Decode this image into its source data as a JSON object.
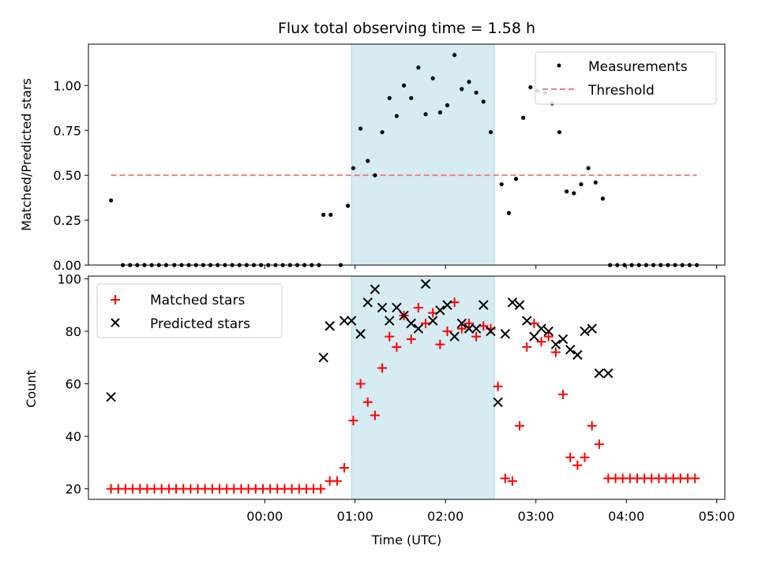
{
  "chart_data": [
    {
      "type": "scatter",
      "title": "Flux total observing time = 1.58 h",
      "xlabel": "",
      "ylabel": "Matched/Predicted stars",
      "x_unit": "hours UTC",
      "xlim": [
        -1.95,
        5.09
      ],
      "ylim": [
        0.0,
        1.23
      ],
      "yticks": [
        "0.00",
        "0.25",
        "0.50",
        "0.75",
        "1.00"
      ],
      "observing_window": [
        0.96,
        2.54
      ],
      "window_color": "#add8e6",
      "legend": {
        "position": "top-right",
        "entries": [
          "Measurements",
          "Threshold"
        ]
      },
      "series": [
        {
          "name": "Measurements",
          "marker": "dot",
          "color": "#000000",
          "x": [
            -1.7,
            -1.57,
            -1.49,
            -1.41,
            -1.33,
            -1.25,
            -1.17,
            -1.09,
            -1.0,
            -0.92,
            -0.84,
            -0.76,
            -0.68,
            -0.6,
            -0.52,
            -0.44,
            -0.36,
            -0.28,
            -0.2,
            -0.12,
            -0.04,
            0.04,
            0.12,
            0.2,
            0.28,
            0.36,
            0.44,
            0.52,
            0.6,
            0.65,
            0.73,
            0.84,
            0.92,
            0.98,
            1.06,
            1.14,
            1.22,
            1.3,
            1.38,
            1.46,
            1.54,
            1.62,
            1.7,
            1.78,
            1.86,
            1.94,
            2.02,
            2.1,
            2.18,
            2.26,
            2.34,
            2.42,
            2.5,
            2.62,
            2.7,
            2.78,
            2.86,
            2.94,
            3.02,
            3.1,
            3.18,
            3.26,
            3.34,
            3.42,
            3.5,
            3.58,
            3.66,
            3.74,
            3.82,
            3.9,
            3.98,
            4.06,
            4.14,
            4.22,
            4.3,
            4.38,
            4.46,
            4.54,
            4.62,
            4.7,
            4.78
          ],
          "y": [
            0.36,
            0.0,
            0.0,
            0.0,
            0.0,
            0.0,
            0.0,
            0.0,
            0.0,
            0.0,
            0.0,
            0.0,
            0.0,
            0.0,
            0.0,
            0.0,
            0.0,
            0.0,
            0.0,
            0.0,
            0.0,
            0.0,
            0.0,
            0.0,
            0.0,
            0.0,
            0.0,
            0.0,
            0.0,
            0.28,
            0.28,
            0.0,
            0.33,
            0.54,
            0.76,
            0.58,
            0.5,
            0.74,
            0.93,
            0.83,
            1.0,
            0.93,
            1.1,
            0.84,
            1.04,
            0.85,
            0.89,
            1.17,
            0.98,
            1.02,
            0.96,
            0.91,
            0.74,
            0.45,
            0.29,
            0.48,
            0.82,
            0.99,
            0.97,
            0.96,
            0.9,
            0.74,
            0.41,
            0.4,
            0.45,
            0.54,
            0.46,
            0.37,
            0.0,
            0.0,
            0.0,
            0.0,
            0.0,
            0.0,
            0.0,
            0.0,
            0.0,
            0.0,
            0.0,
            0.0,
            0.0
          ]
        },
        {
          "name": "Threshold",
          "marker": "dashed-line",
          "color": "#f08080",
          "x": [
            -1.7,
            4.78
          ],
          "y": [
            0.5,
            0.5
          ]
        }
      ]
    },
    {
      "type": "scatter",
      "title": "",
      "xlabel": "Time (UTC)",
      "ylabel": "Count",
      "x_unit": "hours UTC",
      "xlim": [
        -1.95,
        5.09
      ],
      "ylim": [
        16,
        101
      ],
      "yticks": [
        "20",
        "40",
        "60",
        "80",
        "100"
      ],
      "xticks": [
        "00:00",
        "01:00",
        "02:00",
        "03:00",
        "04:00",
        "05:00"
      ],
      "xtick_values": [
        0,
        1,
        2,
        3,
        4,
        5
      ],
      "observing_window": [
        0.96,
        2.54
      ],
      "window_color": "#add8e6",
      "legend": {
        "position": "top-left",
        "entries": [
          "Matched stars",
          "Predicted stars"
        ]
      },
      "series": [
        {
          "name": "Matched stars",
          "marker": "plus",
          "color": "#ff0000",
          "x": [
            -1.7,
            -1.62,
            -1.54,
            -1.46,
            -1.38,
            -1.3,
            -1.22,
            -1.14,
            -1.06,
            -0.98,
            -0.9,
            -0.82,
            -0.74,
            -0.66,
            -0.58,
            -0.5,
            -0.42,
            -0.34,
            -0.26,
            -0.18,
            -0.1,
            -0.02,
            0.06,
            0.14,
            0.22,
            0.3,
            0.38,
            0.46,
            0.54,
            0.62,
            0.72,
            0.8,
            0.88,
            0.98,
            1.06,
            1.14,
            1.22,
            1.3,
            1.38,
            1.46,
            1.54,
            1.62,
            1.7,
            1.78,
            1.86,
            1.94,
            2.02,
            2.1,
            2.18,
            2.26,
            2.34,
            2.42,
            2.5,
            2.58,
            2.66,
            2.74,
            2.82,
            2.9,
            2.98,
            3.06,
            3.14,
            3.22,
            3.3,
            3.38,
            3.46,
            3.54,
            3.62,
            3.7,
            3.8,
            3.88,
            3.96,
            4.04,
            4.12,
            4.2,
            4.28,
            4.36,
            4.44,
            4.52,
            4.6,
            4.68,
            4.76
          ],
          "y": [
            20,
            20,
            20,
            20,
            20,
            20,
            20,
            20,
            20,
            20,
            20,
            20,
            20,
            20,
            20,
            20,
            20,
            20,
            20,
            20,
            20,
            20,
            20,
            20,
            20,
            20,
            20,
            20,
            20,
            20,
            23,
            23,
            28,
            46,
            60,
            53,
            48,
            66,
            78,
            74,
            86,
            77,
            89,
            83,
            87,
            75,
            80,
            91,
            81,
            83,
            78,
            82,
            81,
            59,
            24,
            23,
            44,
            74,
            83,
            76,
            78,
            72,
            56,
            32,
            29,
            32,
            44,
            37,
            24,
            24,
            24,
            24,
            24,
            24,
            24,
            24,
            24,
            24,
            24,
            24,
            24
          ]
        },
        {
          "name": "Predicted stars",
          "marker": "x",
          "color": "#000000",
          "x": [
            -1.7,
            0.65,
            0.72,
            0.88,
            0.96,
            1.06,
            1.14,
            1.22,
            1.3,
            1.38,
            1.46,
            1.54,
            1.62,
            1.7,
            1.78,
            1.86,
            1.94,
            2.02,
            2.1,
            2.18,
            2.26,
            2.34,
            2.42,
            2.5,
            2.58,
            2.66,
            2.74,
            2.82,
            2.9,
            2.98,
            3.06,
            3.14,
            3.22,
            3.3,
            3.38,
            3.46,
            3.54,
            3.62,
            3.7,
            3.8
          ],
          "y": [
            55,
            70,
            82,
            84,
            84,
            79,
            91,
            96,
            89,
            84,
            89,
            86,
            83,
            81,
            98,
            84,
            88,
            90,
            78,
            83,
            81,
            81,
            90,
            80,
            53,
            79,
            91,
            90,
            84,
            78,
            81,
            80,
            75,
            77,
            73,
            71,
            80,
            81,
            64,
            64
          ]
        }
      ]
    }
  ]
}
